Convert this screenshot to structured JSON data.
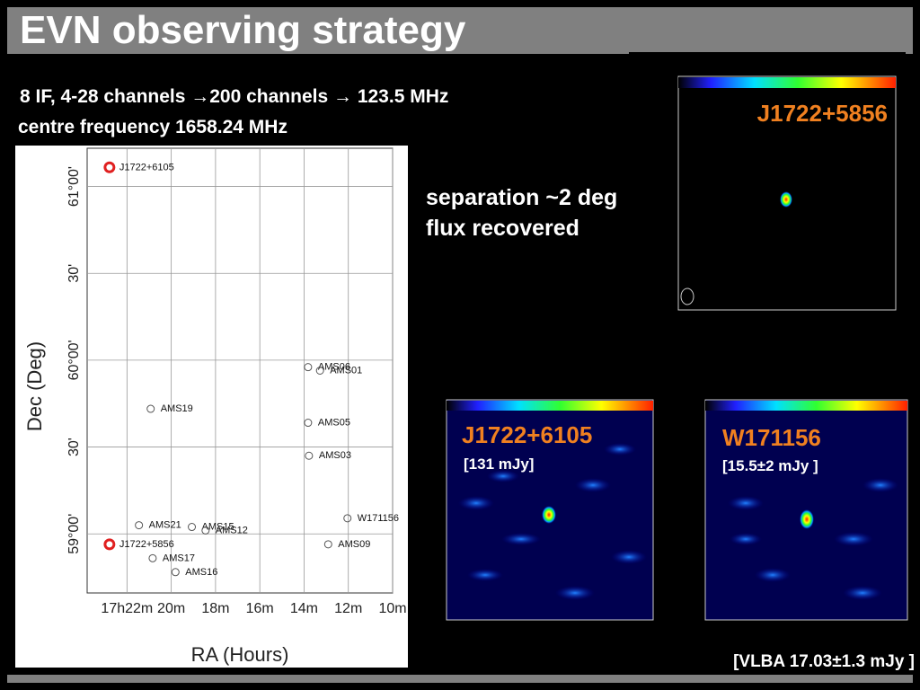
{
  "title": "EVN observing strategy",
  "bullets": [
    "8 IF, 4-28 channels →200 channels → 123.5 MHz",
    "centre frequency 1658.24 MHz"
  ],
  "notes": [
    "separation ~2 deg",
    "flux recovered"
  ],
  "images": [
    {
      "label": "J1722+5856"
    },
    {
      "label": "J1722+6105",
      "flux": "[131 mJy]"
    },
    {
      "label": "W171156",
      "flux": "[15.5±2 mJy ]"
    }
  ],
  "footnote": "[VLBA 17.03±1.3 mJy ]",
  "chart_data": {
    "type": "scatter",
    "xlabel": "RA (Hours)",
    "ylabel": "Dec (Deg)",
    "xlim": [
      23.8,
      10
    ],
    "ylim": [
      58.66,
      61.22
    ],
    "xticks": [
      {
        "value": 22,
        "label": "17h22m"
      },
      {
        "value": 20,
        "label": "20m"
      },
      {
        "value": 18,
        "label": "18m"
      },
      {
        "value": 16,
        "label": "16m"
      },
      {
        "value": 14,
        "label": "14m"
      },
      {
        "value": 12,
        "label": "12m"
      },
      {
        "value": 10,
        "label": "10m"
      }
    ],
    "yticks": [
      {
        "value": 59,
        "label": "59°00'"
      },
      {
        "value": 59.5,
        "label": "30'"
      },
      {
        "value": 60,
        "label": "60°00'"
      },
      {
        "value": 60.5,
        "label": "30'"
      },
      {
        "value": 61,
        "label": "61°00'"
      }
    ],
    "grid": true,
    "points": [
      {
        "label": "J1722+6105",
        "x": 22.79,
        "y": 61.11,
        "color": "#e02020"
      },
      {
        "label": "J1722+5856",
        "x": 22.79,
        "y": 58.94,
        "color": "#e02020"
      },
      {
        "label": "AMS19",
        "x": 20.93,
        "y": 59.72,
        "color": "#555555"
      },
      {
        "label": "AMS21",
        "x": 21.46,
        "y": 59.05,
        "color": "#555555"
      },
      {
        "label": "AMS15",
        "x": 19.07,
        "y": 59.04,
        "color": "#555555"
      },
      {
        "label": "AMS12",
        "x": 18.45,
        "y": 59.02,
        "color": "#555555"
      },
      {
        "label": "AMS17",
        "x": 20.84,
        "y": 58.86,
        "color": "#555555"
      },
      {
        "label": "AMS16",
        "x": 19.81,
        "y": 58.78,
        "color": "#555555"
      },
      {
        "label": "AMS06",
        "x": 13.82,
        "y": 59.96,
        "color": "#555555"
      },
      {
        "label": "AMS01",
        "x": 13.28,
        "y": 59.94,
        "color": "#555555"
      },
      {
        "label": "AMS05",
        "x": 13.82,
        "y": 59.64,
        "color": "#555555"
      },
      {
        "label": "AMS03",
        "x": 13.78,
        "y": 59.45,
        "color": "#555555"
      },
      {
        "label": "W171156",
        "x": 12.04,
        "y": 59.09,
        "color": "#555555"
      },
      {
        "label": "AMS09",
        "x": 12.91,
        "y": 58.94,
        "color": "#555555"
      }
    ]
  }
}
